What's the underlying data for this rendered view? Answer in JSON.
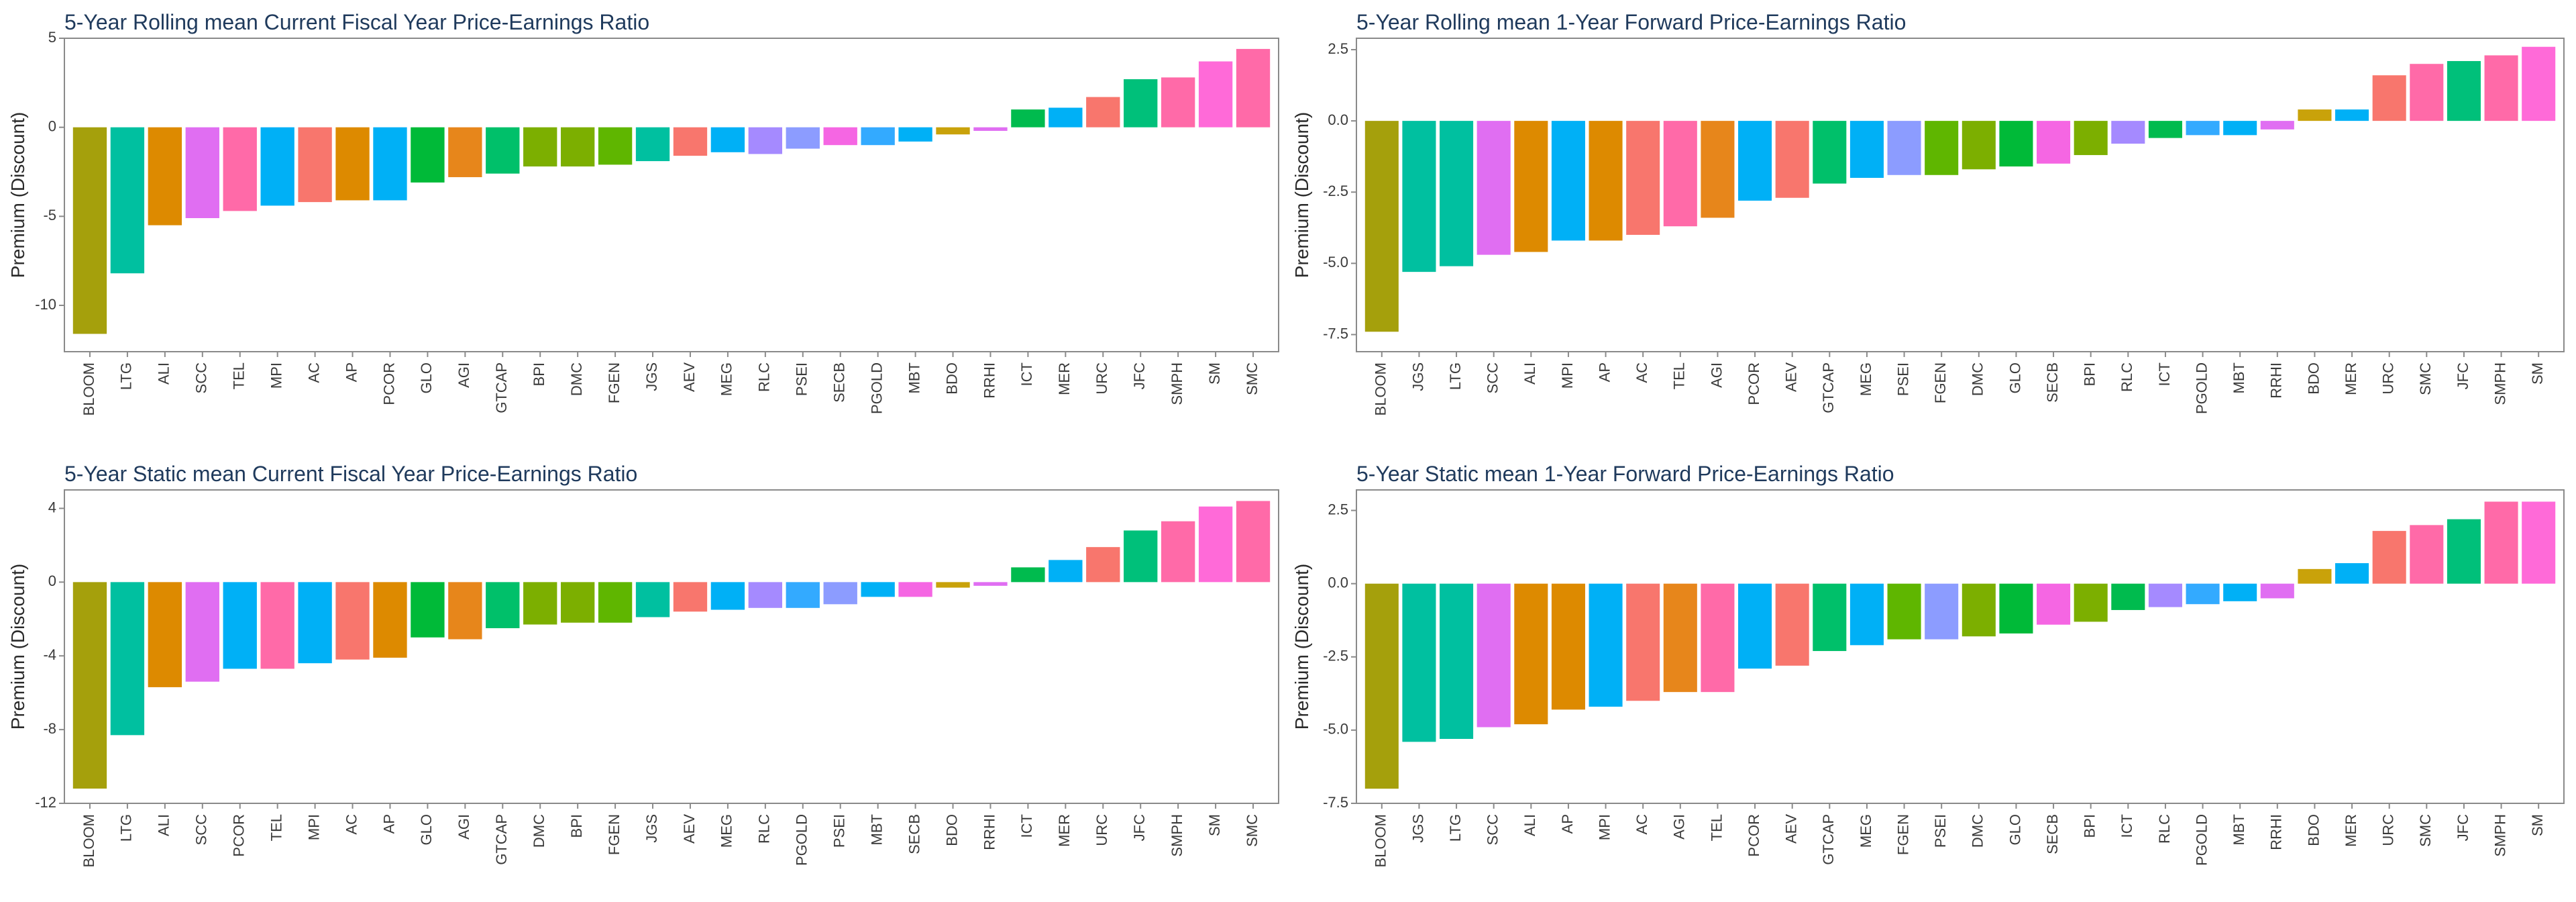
{
  "chart_data": [
    {
      "type": "bar",
      "title": "5-Year Rolling mean Current Fiscal Year Price-Earnings Ratio",
      "ylabel": "Premium (Discount)",
      "xlabel": "",
      "ylim": [
        -12.6,
        5.0
      ],
      "yticks": [
        5,
        0,
        -5,
        -10
      ],
      "ytick_labels": [
        "5",
        "0",
        "-5",
        "-10"
      ],
      "grid": false,
      "categories": [
        "BLOOM",
        "LTG",
        "ALI",
        "SCC",
        "TEL",
        "MPI",
        "AC",
        "AP",
        "PCOR",
        "GLO",
        "AGI",
        "GTCAP",
        "BPI",
        "DMC",
        "FGEN",
        "JGS",
        "AEV",
        "MEG",
        "RLC",
        "PSEI",
        "SECB",
        "PGOLD",
        "MBT",
        "BDO",
        "RRHI",
        "ICT",
        "MER",
        "URC",
        "JFC",
        "SMPH",
        "SM",
        "SMC"
      ],
      "values": [
        -11.6,
        -8.2,
        -5.5,
        -5.1,
        -4.7,
        -4.4,
        -4.2,
        -4.1,
        -4.1,
        -3.1,
        -2.8,
        -2.6,
        -2.2,
        -2.2,
        -2.1,
        -1.9,
        -1.6,
        -1.4,
        -1.5,
        -1.2,
        -1.0,
        -1.0,
        -0.8,
        -0.4,
        -0.2,
        1.0,
        1.1,
        1.7,
        2.7,
        2.8,
        3.7,
        4.4
      ]
    },
    {
      "type": "bar",
      "title": "5-Year Rolling mean 1-Year Forward Price-Earnings Ratio",
      "ylabel": "Premium (Discount)",
      "xlabel": "",
      "ylim": [
        -8.1,
        2.9
      ],
      "yticks": [
        2.5,
        0,
        -2.5,
        -5,
        -7.5
      ],
      "ytick_labels": [
        "2.5",
        "0.0",
        "-2.5",
        "-5.0",
        "-7.5"
      ],
      "grid": false,
      "categories": [
        "BLOOM",
        "JGS",
        "LTG",
        "SCC",
        "ALI",
        "MPI",
        "AP",
        "AC",
        "TEL",
        "AGI",
        "PCOR",
        "AEV",
        "GTCAP",
        "MEG",
        "PSEI",
        "FGEN",
        "DMC",
        "GLO",
        "SECB",
        "BPI",
        "RLC",
        "ICT",
        "PGOLD",
        "MBT",
        "RRHI",
        "BDO",
        "MER",
        "URC",
        "SMC",
        "JFC",
        "SMPH",
        "SM"
      ],
      "values": [
        -7.4,
        -5.3,
        -5.1,
        -4.7,
        -4.6,
        -4.2,
        -4.2,
        -4.0,
        -3.7,
        -3.4,
        -2.8,
        -2.7,
        -2.2,
        -2.0,
        -1.9,
        -1.9,
        -1.7,
        -1.6,
        -1.5,
        -1.2,
        -0.8,
        -0.6,
        -0.5,
        -0.5,
        -0.3,
        0.4,
        0.4,
        1.6,
        2.0,
        2.1,
        2.3,
        2.6
      ]
    },
    {
      "type": "bar",
      "title": "5-Year Static mean Current Fiscal Year Price-Earnings Ratio",
      "ylabel": "Premium (Discount)",
      "xlabel": "",
      "ylim": [
        -12.0,
        5.0
      ],
      "yticks": [
        4,
        0,
        -4,
        -8,
        -12
      ],
      "ytick_labels": [
        "4",
        "0",
        "-4",
        "-8",
        "-12"
      ],
      "grid": false,
      "categories": [
        "BLOOM",
        "LTG",
        "ALI",
        "SCC",
        "PCOR",
        "TEL",
        "MPI",
        "AC",
        "AP",
        "GLO",
        "AGI",
        "GTCAP",
        "DMC",
        "BPI",
        "FGEN",
        "JGS",
        "AEV",
        "MEG",
        "RLC",
        "PGOLD",
        "PSEI",
        "MBT",
        "SECB",
        "BDO",
        "RRHI",
        "ICT",
        "MER",
        "URC",
        "JFC",
        "SMPH",
        "SM",
        "SMC"
      ],
      "values": [
        -11.2,
        -8.3,
        -5.7,
        -5.4,
        -4.7,
        -4.7,
        -4.4,
        -4.2,
        -4.1,
        -3.0,
        -3.1,
        -2.5,
        -2.3,
        -2.2,
        -2.2,
        -1.9,
        -1.6,
        -1.5,
        -1.4,
        -1.4,
        -1.2,
        -0.8,
        -0.8,
        -0.3,
        -0.2,
        0.8,
        1.2,
        1.9,
        2.8,
        3.3,
        4.1,
        4.4
      ]
    },
    {
      "type": "bar",
      "title": "5-Year Static mean 1-Year Forward Price-Earnings Ratio",
      "ylabel": "Premium (Discount)",
      "xlabel": "",
      "ylim": [
        -7.5,
        3.2
      ],
      "yticks": [
        2.5,
        0,
        -2.5,
        -5,
        -7.5
      ],
      "ytick_labels": [
        "2.5",
        "0.0",
        "-2.5",
        "-5.0",
        "-7.5"
      ],
      "grid": false,
      "categories": [
        "BLOOM",
        "JGS",
        "LTG",
        "SCC",
        "ALI",
        "AP",
        "MPI",
        "AC",
        "AGI",
        "TEL",
        "PCOR",
        "AEV",
        "GTCAP",
        "MEG",
        "FGEN",
        "PSEI",
        "DMC",
        "GLO",
        "SECB",
        "BPI",
        "ICT",
        "RLC",
        "PGOLD",
        "MBT",
        "RRHI",
        "BDO",
        "MER",
        "URC",
        "SMC",
        "JFC",
        "SMPH",
        "SM"
      ],
      "values": [
        -7.0,
        -5.4,
        -5.3,
        -4.9,
        -4.8,
        -4.3,
        -4.2,
        -4.0,
        -3.7,
        -3.7,
        -2.9,
        -2.8,
        -2.3,
        -2.1,
        -1.9,
        -1.9,
        -1.8,
        -1.7,
        -1.4,
        -1.3,
        -0.9,
        -0.8,
        -0.7,
        -0.6,
        -0.5,
        0.5,
        0.7,
        1.8,
        2.0,
        2.2,
        2.8,
        2.8
      ]
    }
  ],
  "colors": {
    "BLOOM": "#a5a00c",
    "LTG": "#00c0a0",
    "JGS": "#00c0a0",
    "ALI": "#dd8a00",
    "AP": "#dd8a00",
    "SCC": "#e06ef2",
    "RRHI": "#e06ef2",
    "TEL": "#ff6aa8",
    "SMC": "#ff6aa8",
    "SM": "#ff6ad8",
    "SMPH": "#ff6aa8",
    "MPI": "#00b0f6",
    "PCOR": "#00b0f6",
    "MEG": "#00b0f6",
    "MBT": "#00b0f6",
    "MER": "#00b0f6",
    "AC": "#f8766d",
    "AEV": "#f8766d",
    "URC": "#f8766d",
    "GLO": "#00ba38",
    "AGI": "#e7861b",
    "GTCAP": "#00c06a",
    "BPI": "#7caf00",
    "DMC": "#7caf00",
    "FGEN": "#5fb600",
    "PSEI": "#8c9cff",
    "RLC": "#a58aff",
    "SECB": "#f566e3",
    "PGOLD": "#33aaff",
    "BDO": "#c9a20a",
    "ICT": "#00bb4e",
    "JFC": "#00c07a"
  }
}
